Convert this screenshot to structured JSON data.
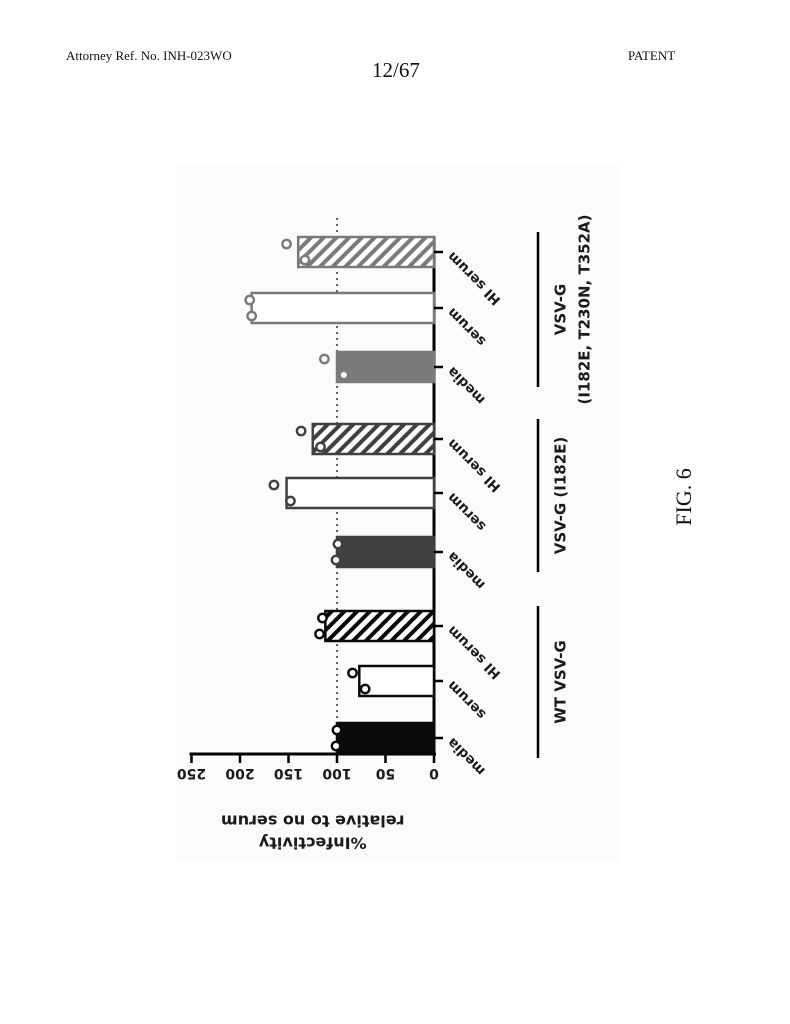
{
  "header": {
    "left": "Attorney Ref. No. INH-023WO",
    "center": "12/67",
    "right": "PATENT"
  },
  "figure_label": "FIG. 6",
  "chart_data": {
    "type": "bar",
    "ylabel": [
      "%Infectivity",
      "relative to no serum"
    ],
    "ylim": [
      0,
      250
    ],
    "yticks": [
      0,
      50,
      100,
      150,
      200,
      250
    ],
    "reference_line": 100,
    "orientation": "rotated 180° (baseline at top of page)",
    "groups": [
      {
        "label": [
          "WT VSV-G"
        ],
        "bars": [
          {
            "category": "media",
            "value": 100,
            "points": [
              100,
              101
            ],
            "style": "solid",
            "color": "#0a0a0a"
          },
          {
            "category": "serum",
            "value": 77,
            "points": [
              84,
              71
            ],
            "style": "open",
            "color": "#0a0a0a"
          },
          {
            "category": "HI serum",
            "value": 112,
            "points": [
              115,
              118
            ],
            "style": "hatched",
            "color": "#0a0a0a"
          }
        ]
      },
      {
        "label": [
          "VSV-G (I182E)"
        ],
        "bars": [
          {
            "category": "media",
            "value": 100,
            "points": [
              99,
              101
            ],
            "style": "solid",
            "color": "#404040"
          },
          {
            "category": "serum",
            "value": 152,
            "points": [
              165,
              148
            ],
            "style": "open",
            "color": "#404040"
          },
          {
            "category": "HI serum",
            "value": 125,
            "points": [
              137,
              117
            ],
            "style": "hatched",
            "color": "#404040"
          }
        ]
      },
      {
        "label": [
          "VSV-G",
          "(I182E, T230N, T352A)"
        ],
        "bars": [
          {
            "category": "media",
            "value": 100,
            "points": [
              113,
              93
            ],
            "style": "solid",
            "color": "#7a7a7a"
          },
          {
            "category": "serum",
            "value": 188,
            "points": [
              190,
              188
            ],
            "style": "open",
            "color": "#7a7a7a"
          },
          {
            "category": "HI serum",
            "value": 140,
            "points": [
              152,
              133
            ],
            "style": "hatched",
            "color": "#7a7a7a"
          }
        ]
      }
    ]
  }
}
